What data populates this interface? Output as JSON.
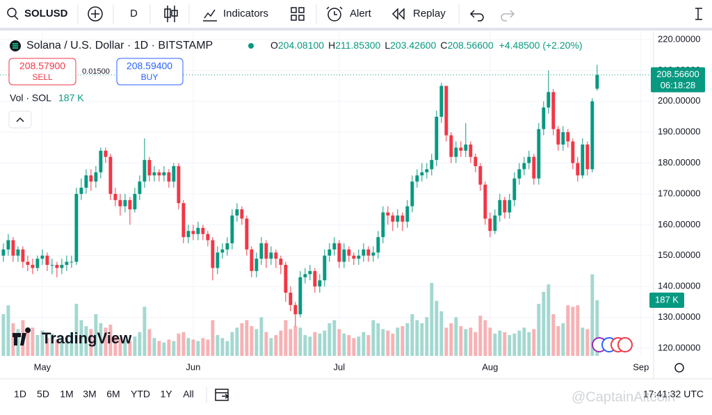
{
  "toolbar": {
    "symbol": "SOLUSD",
    "interval": "D",
    "indicators": "Indicators",
    "alert": "Alert",
    "replay": "Replay"
  },
  "legend": {
    "title": "Solana / U.S. Dollar · 1D · BITSTAMP",
    "ohlc": [
      {
        "label": "O",
        "value": "204.08100"
      },
      {
        "label": "H",
        "value": "211.85300"
      },
      {
        "label": "L",
        "value": "203.42600"
      },
      {
        "label": "C",
        "value": "208.56600"
      }
    ],
    "change": "+4.48500 (+2.20%)",
    "sell_price": "208.57900",
    "sell": "SELL",
    "spread": "0.01500",
    "buy_price": "208.59400",
    "buy": "BUY",
    "volume_label": "Vol · SOL",
    "volume_value": "187 K"
  },
  "watermark_logo": "TradingView",
  "range_buttons": [
    "1D",
    "5D",
    "1M",
    "3M",
    "6M",
    "YTD",
    "1Y",
    "All"
  ],
  "clock": "17:41:32 UTC",
  "watermark": "@CaptainAltcoin",
  "chart_data": {
    "type": "candlestick",
    "up_color": "#089981",
    "down_color": "#f23645",
    "volume_up_color": "#a3d8d0",
    "volume_down_color": "#f7b1b4",
    "grid": true,
    "xlim": [
      -0.7,
      133.6
    ],
    "xticks": [
      {
        "value": 8,
        "label": "May"
      },
      {
        "value": 39,
        "label": "Jun"
      },
      {
        "value": 69,
        "label": "Jul"
      },
      {
        "value": 100,
        "label": "Aug"
      },
      {
        "value": 131,
        "label": "Sep"
      }
    ],
    "ylim": [
      117.5,
      222.7
    ],
    "yticks": [
      {
        "value": 120,
        "label": "120.00000"
      },
      {
        "value": 130,
        "label": "130.00000"
      },
      {
        "value": 140,
        "label": "140.00000"
      },
      {
        "value": 150,
        "label": "150.00000"
      },
      {
        "value": 160,
        "label": "160.00000"
      },
      {
        "value": 170,
        "label": "170.00000"
      },
      {
        "value": 180,
        "label": "180.00000"
      },
      {
        "value": 190,
        "label": "190.00000"
      },
      {
        "value": 200,
        "label": "200.00000"
      },
      {
        "value": 210,
        "label": "210.00000"
      },
      {
        "value": 220,
        "label": "220.00000"
      }
    ],
    "volume_ylim": [
      0,
      1090
    ],
    "last_price": {
      "value": 208.566,
      "label": "208.56600"
    },
    "countdown": "06:18:28",
    "last_volume": {
      "value": 187,
      "label": "187 K"
    },
    "open": [
      150,
      152,
      155,
      150,
      152,
      148,
      147,
      146,
      149,
      150,
      147,
      147,
      146,
      147,
      148,
      148,
      170,
      172,
      176,
      174,
      177,
      184,
      182,
      170,
      168,
      166,
      168,
      165,
      170,
      174,
      181,
      176,
      177,
      176,
      177,
      174,
      179,
      167,
      156,
      158,
      157,
      159,
      157,
      155,
      146,
      151,
      152,
      154,
      163,
      165,
      162,
      152,
      145,
      149,
      154,
      149,
      151,
      149,
      147,
      138,
      134,
      131,
      143,
      144,
      145,
      140,
      142,
      150,
      152,
      154,
      148,
      152,
      150,
      149,
      150,
      152,
      150,
      151,
      156,
      164,
      163,
      161,
      163,
      161,
      166,
      174,
      176,
      177,
      178,
      181,
      195,
      205,
      189,
      182,
      185,
      184,
      186,
      182,
      179,
      173,
      162,
      158,
      163,
      168,
      164,
      168,
      175,
      178,
      180,
      182,
      175,
      191,
      198,
      203,
      191,
      186,
      190,
      187,
      180,
      176,
      186,
      178,
      204.081
    ],
    "high": [
      154,
      157,
      156,
      153,
      153,
      150,
      149,
      150,
      152,
      151,
      149,
      148,
      149,
      150,
      150,
      172,
      175,
      178,
      178,
      179,
      185,
      185,
      183,
      172,
      170,
      170,
      169,
      172,
      176,
      188,
      182,
      179,
      178,
      179,
      178,
      180,
      180,
      168,
      160,
      160,
      161,
      160,
      158,
      156,
      153,
      154,
      156,
      165,
      167,
      166,
      163,
      153,
      151,
      156,
      155,
      153,
      152,
      150,
      148,
      140,
      135,
      145,
      146,
      147,
      146,
      144,
      152,
      154,
      156,
      155,
      154,
      153,
      151,
      152,
      154,
      153,
      153,
      158,
      166,
      166,
      164,
      165,
      164,
      168,
      176,
      178,
      180,
      180,
      183,
      197,
      206,
      205,
      190,
      187,
      187,
      193,
      187,
      183,
      180,
      174,
      164,
      165,
      170,
      169,
      170,
      177,
      180,
      182,
      184,
      183,
      193,
      200,
      210,
      204,
      192,
      192,
      191,
      188,
      182,
      188,
      187,
      201,
      211.853
    ],
    "low": [
      148,
      150,
      148,
      148,
      146,
      145,
      144,
      145,
      147,
      145,
      144,
      143,
      144,
      145,
      146,
      147,
      168,
      170,
      171,
      172,
      175,
      180,
      168,
      166,
      163,
      164,
      160,
      164,
      168,
      172,
      174,
      174,
      174,
      174,
      172,
      172,
      165,
      154,
      154,
      155,
      155,
      155,
      153,
      142,
      144,
      149,
      150,
      152,
      161,
      160,
      150,
      143,
      143,
      147,
      146,
      147,
      146,
      144,
      135,
      132,
      127,
      130,
      141,
      142,
      138,
      138,
      140,
      148,
      150,
      146,
      146,
      148,
      147,
      147,
      148,
      148,
      148,
      149,
      154,
      160,
      158,
      159,
      158,
      159,
      164,
      172,
      174,
      175,
      176,
      179,
      193,
      187,
      180,
      180,
      182,
      182,
      180,
      177,
      171,
      160,
      156,
      157,
      161,
      162,
      162,
      166,
      173,
      176,
      178,
      173,
      173,
      189,
      196,
      189,
      184,
      184,
      185,
      178,
      174,
      175,
      176,
      177,
      203.426
    ],
    "close": [
      152,
      155,
      150,
      152,
      148,
      147,
      146,
      149,
      150,
      147,
      147,
      146,
      147,
      148,
      148,
      170,
      172,
      176,
      174,
      177,
      184,
      182,
      170,
      168,
      166,
      168,
      165,
      170,
      174,
      181,
      176,
      177,
      176,
      177,
      174,
      179,
      167,
      156,
      158,
      157,
      159,
      157,
      155,
      146,
      151,
      152,
      154,
      163,
      165,
      162,
      152,
      145,
      149,
      154,
      149,
      151,
      149,
      147,
      138,
      134,
      131,
      143,
      144,
      145,
      140,
      142,
      150,
      152,
      154,
      148,
      152,
      150,
      149,
      150,
      152,
      150,
      151,
      156,
      164,
      163,
      161,
      163,
      161,
      166,
      174,
      176,
      177,
      178,
      181,
      195,
      205,
      189,
      182,
      185,
      184,
      186,
      182,
      179,
      173,
      162,
      158,
      163,
      168,
      164,
      168,
      175,
      178,
      180,
      182,
      175,
      191,
      198,
      203,
      191,
      186,
      190,
      187,
      180,
      176,
      186,
      178,
      200,
      208.566
    ],
    "volume": [
      140,
      170,
      110,
      90,
      120,
      80,
      95,
      70,
      85,
      60,
      75,
      55,
      65,
      60,
      80,
      175,
      120,
      100,
      90,
      140,
      110,
      95,
      105,
      70,
      60,
      55,
      50,
      65,
      80,
      165,
      90,
      60,
      50,
      45,
      55,
      50,
      75,
      80,
      60,
      55,
      50,
      60,
      55,
      120,
      70,
      60,
      50,
      80,
      95,
      110,
      120,
      100,
      90,
      130,
      80,
      60,
      70,
      85,
      120,
      90,
      100,
      95,
      70,
      65,
      80,
      75,
      85,
      110,
      120,
      90,
      75,
      70,
      60,
      65,
      80,
      70,
      120,
      110,
      90,
      85,
      75,
      95,
      100,
      110,
      140,
      120,
      110,
      130,
      245,
      185,
      150,
      95,
      110,
      130,
      100,
      90,
      95,
      80,
      135,
      120,
      95,
      75,
      85,
      80,
      70,
      75,
      85,
      95,
      80,
      90,
      175,
      215,
      240,
      140,
      100,
      110,
      170,
      165,
      170,
      95,
      90,
      274,
      187
    ]
  }
}
